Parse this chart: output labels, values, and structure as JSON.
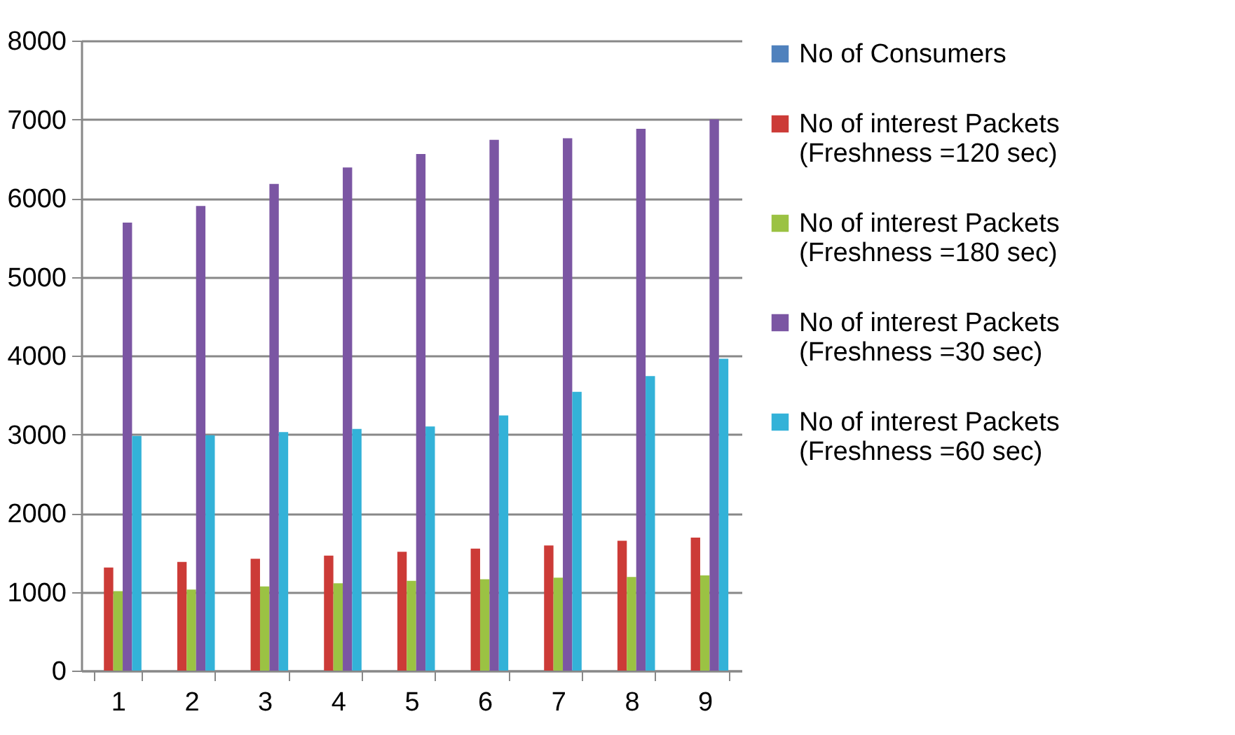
{
  "chart_data": {
    "type": "bar",
    "categories": [
      "1",
      "2",
      "3",
      "4",
      "5",
      "6",
      "7",
      "8",
      "9"
    ],
    "series": [
      {
        "name": "No of Consumers",
        "color": "#4f81bd",
        "values": [
          null,
          null,
          null,
          null,
          null,
          null,
          null,
          null,
          null
        ]
      },
      {
        "name": "No of interest Packets (Freshness =120 sec)",
        "color": "#cc3b37",
        "values": [
          1310,
          1380,
          1420,
          1460,
          1510,
          1550,
          1590,
          1650,
          1690
        ]
      },
      {
        "name": "No of interest Packets (Freshness =180 sec)",
        "color": "#9bc243",
        "values": [
          1010,
          1030,
          1070,
          1110,
          1140,
          1160,
          1180,
          1190,
          1210
        ]
      },
      {
        "name": "No of interest Packets (Freshness =30 sec)",
        "color": "#7b56a3",
        "values": [
          5690,
          5900,
          6180,
          6390,
          6560,
          6740,
          6760,
          6880,
          7000
        ]
      },
      {
        "name": "No of interest Packets (Freshness =60 sec)",
        "color": "#33b2d8",
        "values": [
          2980,
          2990,
          3030,
          3070,
          3100,
          3240,
          3540,
          3740,
          3960
        ]
      }
    ],
    "ylim": [
      0,
      8000
    ],
    "yticks": [
      0,
      1000,
      2000,
      3000,
      4000,
      5000,
      6000,
      7000,
      8000
    ],
    "grid": "y",
    "legend": "right"
  }
}
